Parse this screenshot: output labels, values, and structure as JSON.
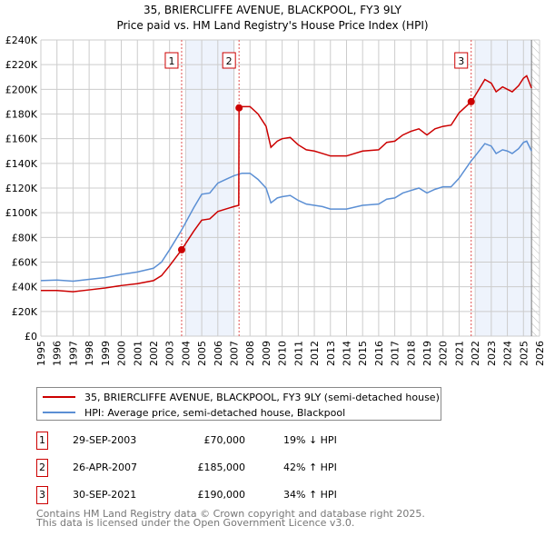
{
  "chart_data": {
    "type": "line",
    "title": "35, BRIERCLIFFE AVENUE, BLACKPOOL, FY3 9LY",
    "subtitle": "Price paid vs. HM Land Registry's House Price Index (HPI)",
    "xlim": [
      1995,
      2026
    ],
    "ylim": [
      0,
      240000
    ],
    "yticks": [
      0,
      20000,
      40000,
      60000,
      80000,
      100000,
      120000,
      140000,
      160000,
      180000,
      200000,
      220000,
      240000
    ],
    "ytick_labels": [
      "£0",
      "£20K",
      "£40K",
      "£60K",
      "£80K",
      "£100K",
      "£120K",
      "£140K",
      "£160K",
      "£180K",
      "£200K",
      "£220K",
      "£240K"
    ],
    "xticks": [
      1995,
      1996,
      1997,
      1998,
      1999,
      2000,
      2001,
      2002,
      2003,
      2004,
      2005,
      2006,
      2007,
      2008,
      2009,
      2010,
      2011,
      2012,
      2013,
      2014,
      2015,
      2016,
      2017,
      2018,
      2019,
      2020,
      2021,
      2022,
      2023,
      2024,
      2025,
      2026
    ],
    "grid": true,
    "shaded_ranges": [
      [
        2004,
        2007.05
      ],
      [
        2022,
        2025.5
      ]
    ],
    "future_hatch_from": 2025.5,
    "colors": {
      "property": "#cc0000",
      "hpi": "#5b8fd4",
      "shade": "#eef3fc",
      "marker_line": "#e05050"
    },
    "series": [
      {
        "name": "35, BRIERCLIFFE AVENUE, BLACKPOOL, FY3 9LY (semi-detached house)",
        "color": "#cc0000",
        "x": [
          1995,
          1996,
          1997,
          1998,
          1999,
          2000,
          2001,
          2002,
          2002.5,
          2003,
          2003.75,
          2004.5,
          2005,
          2005.5,
          2006,
          2006.5,
          2007,
          2007.3,
          2007.32,
          2007.5,
          2008,
          2008.5,
          2009,
          2009.3,
          2009.7,
          2010,
          2010.5,
          2011,
          2011.5,
          2012,
          2012.5,
          2013,
          2014,
          2015,
          2016,
          2016.5,
          2017,
          2017.5,
          2018,
          2018.5,
          2019,
          2019.5,
          2020,
          2020.5,
          2021,
          2021.75,
          2022,
          2022.6,
          2023,
          2023.3,
          2023.7,
          2024,
          2024.3,
          2024.7,
          2025,
          2025.2,
          2025.5
        ],
        "y": [
          37000,
          37000,
          36000,
          37500,
          39000,
          41000,
          42500,
          45000,
          49000,
          57000,
          70000,
          85000,
          94000,
          95000,
          101000,
          103000,
          105000,
          106000,
          185000,
          186000,
          186000,
          180000,
          170000,
          153000,
          158000,
          160000,
          161000,
          155000,
          151000,
          150000,
          148000,
          146000,
          146000,
          150000,
          151000,
          157000,
          158000,
          163000,
          166000,
          168000,
          163000,
          168000,
          170000,
          171000,
          181000,
          190000,
          195000,
          208000,
          205000,
          198000,
          202000,
          200000,
          198000,
          203000,
          209000,
          211000,
          201000
        ]
      },
      {
        "name": "HPI: Average price, semi-detached house, Blackpool",
        "color": "#5b8fd4",
        "x": [
          1995,
          1996,
          1997,
          1998,
          1999,
          2000,
          2001,
          2002,
          2002.5,
          2003,
          2003.75,
          2004.5,
          2005,
          2005.5,
          2006,
          2006.5,
          2007,
          2007.5,
          2008,
          2008.5,
          2009,
          2009.3,
          2009.7,
          2010,
          2010.5,
          2011,
          2011.5,
          2012,
          2012.5,
          2013,
          2014,
          2015,
          2016,
          2016.5,
          2017,
          2017.5,
          2018,
          2018.5,
          2019,
          2019.5,
          2020,
          2020.5,
          2021,
          2021.75,
          2022,
          2022.6,
          2023,
          2023.3,
          2023.7,
          2024,
          2024.3,
          2024.7,
          2025,
          2025.2,
          2025.5
        ],
        "y": [
          45000,
          45500,
          44500,
          46000,
          47500,
          50000,
          52000,
          55000,
          60000,
          70000,
          86000,
          104000,
          115000,
          116000,
          124000,
          127000,
          130000,
          132000,
          132000,
          127000,
          120000,
          108000,
          112000,
          113000,
          114000,
          110000,
          107000,
          106000,
          105000,
          103000,
          103000,
          106000,
          107000,
          111000,
          112000,
          116000,
          118000,
          120000,
          116000,
          119000,
          121000,
          121000,
          128000,
          142000,
          146000,
          156000,
          154000,
          148000,
          151000,
          150000,
          148000,
          152000,
          157000,
          158000,
          150000
        ]
      }
    ],
    "sales": [
      {
        "label": "1",
        "x": 2003.75,
        "price": 70000,
        "date": "29-SEP-2003",
        "price_text": "£70,000",
        "hpi_text": "19% ↓ HPI"
      },
      {
        "label": "2",
        "x": 2007.32,
        "price": 185000,
        "date": "26-APR-2007",
        "price_text": "£185,000",
        "hpi_text": "42% ↑ HPI"
      },
      {
        "label": "3",
        "x": 2021.75,
        "price": 190000,
        "date": "30-SEP-2021",
        "price_text": "£190,000",
        "hpi_text": "34% ↑ HPI"
      }
    ]
  },
  "footer": {
    "line1": "Contains HM Land Registry data © Crown copyright and database right 2025.",
    "line2": "This data is licensed under the Open Government Licence v3.0."
  }
}
